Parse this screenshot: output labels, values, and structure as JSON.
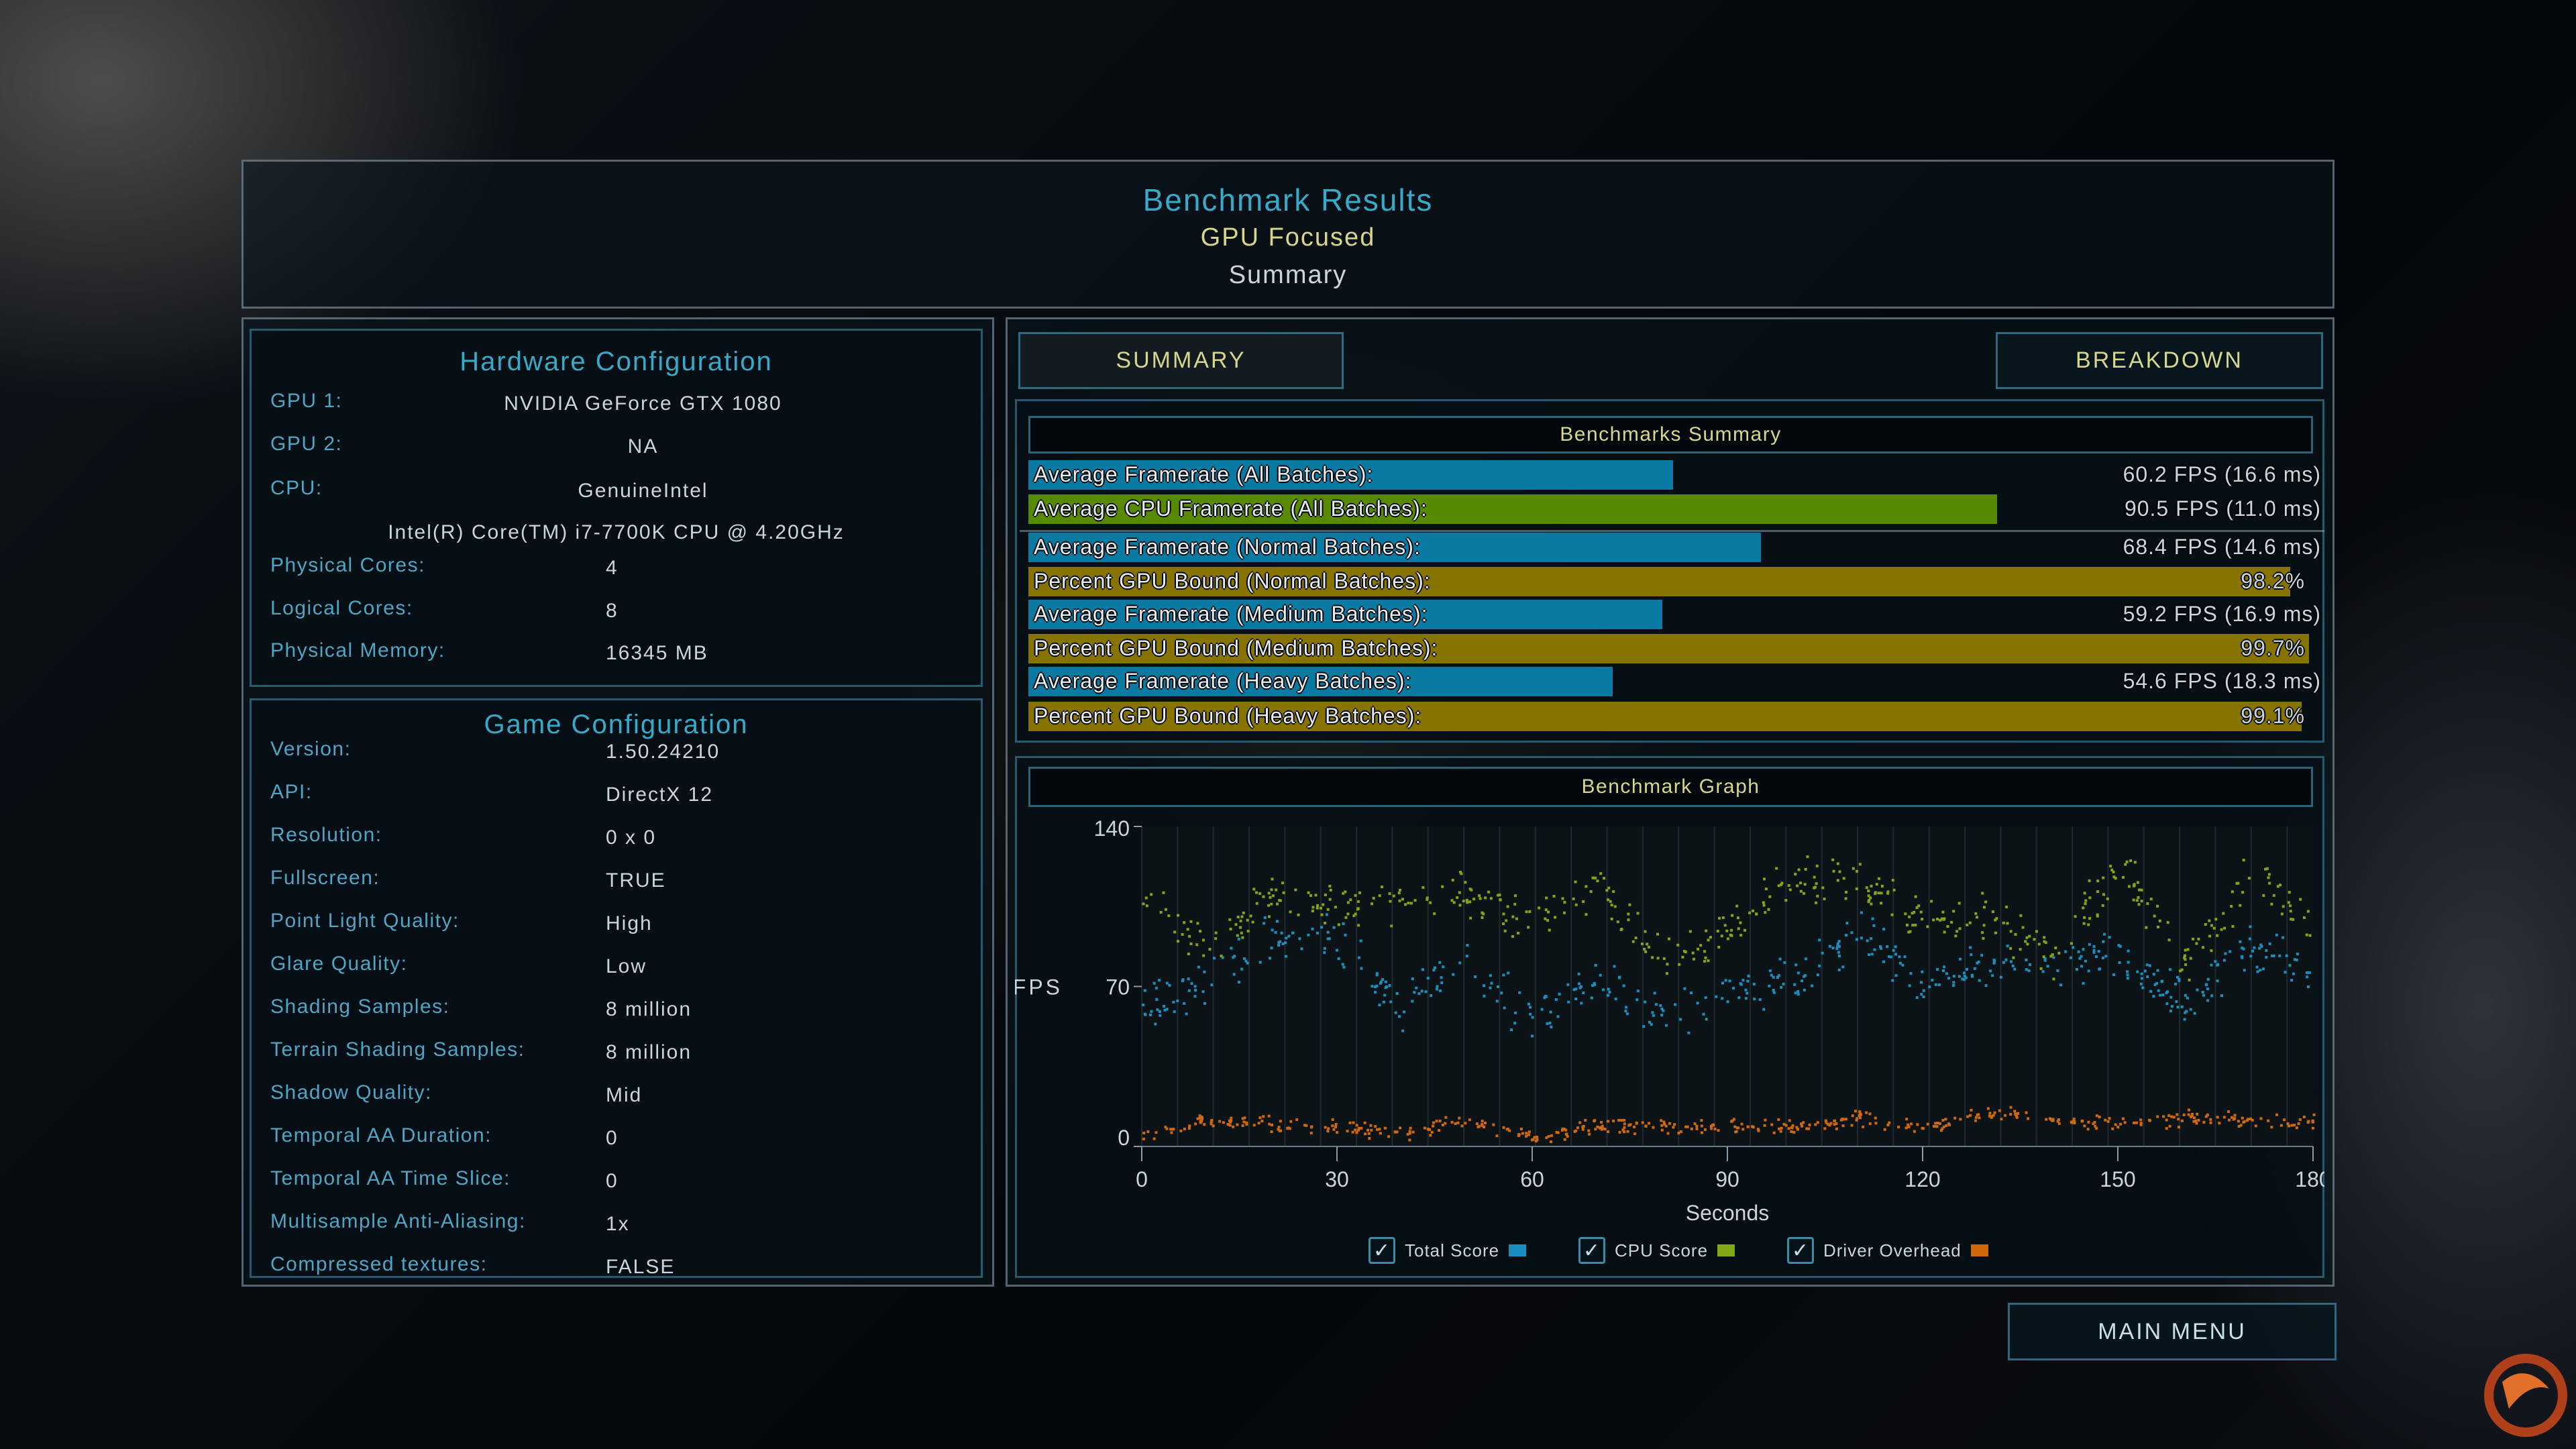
{
  "header": {
    "title": "Benchmark Results",
    "subtitle": "GPU Focused",
    "view": "Summary"
  },
  "hardware": {
    "title": "Hardware Configuration",
    "rows": [
      {
        "label": "GPU 1:",
        "value": "NVIDIA GeForce GTX 1080"
      },
      {
        "label": "GPU 2:",
        "value": "NA"
      },
      {
        "label": "CPU:",
        "value": "GenuineIntel"
      },
      {
        "label": "",
        "value": "Intel(R) Core(TM) i7-7700K CPU @ 4.20GHz"
      },
      {
        "label": "Physical Cores:",
        "value": "4"
      },
      {
        "label": "Logical Cores:",
        "value": "8"
      },
      {
        "label": "Physical Memory:",
        "value": "16345  MB"
      }
    ]
  },
  "game": {
    "title": "Game Configuration",
    "rows": [
      {
        "label": "Version:",
        "value": "1.50.24210"
      },
      {
        "label": "API:",
        "value": "DirectX 12"
      },
      {
        "label": "Resolution:",
        "value": "0 x 0"
      },
      {
        "label": "Fullscreen:",
        "value": "TRUE"
      },
      {
        "label": "Point Light Quality:",
        "value": "High"
      },
      {
        "label": "Glare Quality:",
        "value": "Low"
      },
      {
        "label": "Shading Samples:",
        "value": "8 million"
      },
      {
        "label": "Terrain Shading Samples:",
        "value": "8 million"
      },
      {
        "label": "Shadow Quality:",
        "value": "Mid"
      },
      {
        "label": "Temporal AA Duration:",
        "value": "0"
      },
      {
        "label": "Temporal AA Time Slice:",
        "value": "0"
      },
      {
        "label": "Multisample Anti-Aliasing:",
        "value": "1x"
      },
      {
        "label": "Compressed textures:",
        "value": "FALSE"
      }
    ]
  },
  "tabs": {
    "summary": "SUMMARY",
    "breakdown": "BREAKDOWN",
    "active": "summary"
  },
  "summary": {
    "title": "Benchmarks Summary",
    "bars": [
      {
        "label": "Average Framerate (All Batches):",
        "value_text": "60.2 FPS (16.6 ms)",
        "value": 60.2,
        "kind": "fps",
        "color": "#0b7aa3"
      },
      {
        "label": "Average CPU Framerate (All Batches):",
        "value_text": "90.5 FPS (11.0 ms)",
        "value": 90.5,
        "kind": "fps",
        "color": "#578a00"
      },
      {
        "label": "Average Framerate (Normal Batches):",
        "value_text": "68.4 FPS (14.6 ms)",
        "value": 68.4,
        "kind": "fps",
        "color": "#0b7aa3"
      },
      {
        "label": "Percent GPU Bound (Normal Batches):",
        "value_text": "98.2%",
        "value": 98.2,
        "kind": "pct",
        "color": "#877400"
      },
      {
        "label": "Average Framerate (Medium Batches):",
        "value_text": "59.2 FPS (16.9 ms)",
        "value": 59.2,
        "kind": "fps",
        "color": "#0b7aa3"
      },
      {
        "label": "Percent GPU Bound (Medium Batches):",
        "value_text": "99.7%",
        "value": 99.7,
        "kind": "pct",
        "color": "#877400"
      },
      {
        "label": "Average Framerate (Heavy Batches):",
        "value_text": "54.6 FPS (18.3 ms)",
        "value": 54.6,
        "kind": "fps",
        "color": "#0b7aa3"
      },
      {
        "label": "Percent GPU Bound (Heavy Batches):",
        "value_text": "99.1%",
        "value": 99.1,
        "kind": "pct",
        "color": "#877400"
      }
    ]
  },
  "graph_title": "Benchmark Graph",
  "chart_data": {
    "type": "scatter",
    "xlabel": "Seconds",
    "ylabel": "FPS",
    "xlim": [
      0,
      180
    ],
    "ylim": [
      0,
      140
    ],
    "xticks": [
      "0",
      "30",
      "60",
      "90",
      "120",
      "150",
      "180"
    ],
    "yticks": [
      "0",
      "70",
      "140"
    ],
    "grid": "vertical",
    "legend_position": "bottom",
    "x": [
      0,
      10,
      20,
      30,
      40,
      50,
      60,
      70,
      80,
      90,
      100,
      110,
      120,
      130,
      140,
      150,
      160,
      170,
      180
    ],
    "series": [
      {
        "name": "Total Score",
        "color": "#1a8fbf",
        "checked": true,
        "values": [
          60,
          72,
          95,
          90,
          62,
          80,
          55,
          76,
          55,
          70,
          72,
          95,
          72,
          80,
          78,
          85,
          62,
          88,
          80
        ]
      },
      {
        "name": "CPU Score",
        "color": "#7fa812",
        "checked": true,
        "values": [
          110,
          85,
          112,
          105,
          108,
          110,
          100,
          115,
          82,
          95,
          118,
          115,
          98,
          100,
          85,
          125,
          80,
          118,
          100
        ]
      },
      {
        "name": "Driver Overhead",
        "color": "#d0680c",
        "checked": true,
        "values": [
          5,
          12,
          10,
          9,
          6,
          12,
          4,
          10,
          9,
          10,
          9,
          13,
          8,
          15,
          12,
          10,
          13,
          12,
          11
        ]
      }
    ]
  },
  "main_menu": "MAIN MENU"
}
